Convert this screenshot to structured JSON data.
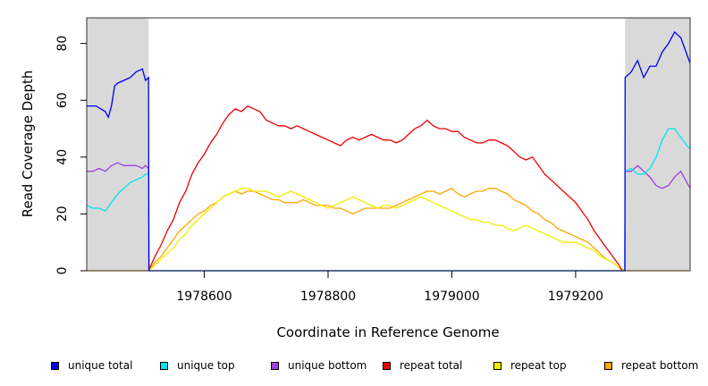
{
  "chart_data": {
    "type": "line",
    "title": "",
    "xlabel": "Coordinate in Reference Genome",
    "ylabel": "Read Coverage Depth",
    "xlim": [
      1978410,
      1979385
    ],
    "ylim": [
      0,
      89
    ],
    "xticks": [
      1978600,
      1978800,
      1979000,
      1979200
    ],
    "xtick_labels": [
      "1978600",
      "1978800",
      "1979000",
      "1979200"
    ],
    "yticks": [
      0,
      20,
      40,
      60,
      80
    ],
    "ytick_labels": [
      "0",
      "20",
      "40",
      "60",
      "80"
    ],
    "shaded_regions": [
      [
        1978410,
        1978510
      ],
      [
        1979280,
        1979385
      ]
    ],
    "shade_color": "#d9d9d9",
    "grid": false,
    "legend_position": "bottom",
    "series": [
      {
        "name": "unique total",
        "color": "#0000ee",
        "x": [
          1978410,
          1978425,
          1978440,
          1978445,
          1978450,
          1978455,
          1978460,
          1978470,
          1978480,
          1978490,
          1978500,
          1978505,
          1978510,
          1978510.5,
          1979279.5,
          1979280,
          1979290,
          1979300,
          1979310,
          1979320,
          1979330,
          1979340,
          1979350,
          1979360,
          1979370,
          1979385
        ],
        "values": [
          58,
          58,
          56,
          54,
          58,
          65,
          66,
          67,
          68,
          70,
          71,
          67,
          68,
          0,
          0,
          68,
          70,
          74,
          68,
          72,
          72,
          77,
          80,
          84,
          82,
          73
        ]
      },
      {
        "name": "unique top",
        "color": "#00e5ee",
        "x": [
          1978410,
          1978420,
          1978430,
          1978440,
          1978450,
          1978460,
          1978470,
          1978480,
          1978490,
          1978500,
          1978505,
          1978510,
          1978510.5,
          1979279.5,
          1979280,
          1979290,
          1979300,
          1979310,
          1979320,
          1979330,
          1979340,
          1979350,
          1979360,
          1979370,
          1979380,
          1979385
        ],
        "values": [
          23,
          22,
          22,
          21,
          24,
          27,
          29,
          31,
          32,
          33,
          34,
          34,
          0,
          0,
          35,
          36,
          34,
          34,
          36,
          40,
          46,
          50,
          50,
          47,
          44,
          43
        ]
      },
      {
        "name": "unique bottom",
        "color": "#a040e0",
        "x": [
          1978410,
          1978420,
          1978430,
          1978440,
          1978450,
          1978460,
          1978470,
          1978480,
          1978490,
          1978500,
          1978505,
          1978510,
          1978510.5,
          1979279.5,
          1979280,
          1979290,
          1979300,
          1979310,
          1979320,
          1979330,
          1979340,
          1979350,
          1979360,
          1979370,
          1979380,
          1979385
        ],
        "values": [
          35,
          35,
          36,
          35,
          37,
          38,
          37,
          37,
          37,
          36,
          37,
          36,
          0,
          0,
          35,
          35,
          37,
          35,
          33,
          30,
          29,
          30,
          33,
          35,
          31,
          29
        ]
      },
      {
        "name": "repeat total",
        "color": "#ee0000",
        "x": [
          1978510,
          1978520,
          1978530,
          1978540,
          1978550,
          1978560,
          1978570,
          1978580,
          1978590,
          1978600,
          1978610,
          1978620,
          1978630,
          1978640,
          1978650,
          1978660,
          1978670,
          1978680,
          1978690,
          1978700,
          1978710,
          1978720,
          1978730,
          1978740,
          1978750,
          1978760,
          1978770,
          1978780,
          1978790,
          1978800,
          1978810,
          1978820,
          1978830,
          1978840,
          1978850,
          1978860,
          1978870,
          1978880,
          1978890,
          1978900,
          1978910,
          1978920,
          1978930,
          1978940,
          1978950,
          1978960,
          1978970,
          1978980,
          1978990,
          1979000,
          1979010,
          1979020,
          1979030,
          1979040,
          1979050,
          1979060,
          1979070,
          1979080,
          1979090,
          1979100,
          1979110,
          1979120,
          1979130,
          1979140,
          1979150,
          1979160,
          1979170,
          1979180,
          1979190,
          1979200,
          1979210,
          1979220,
          1979230,
          1979240,
          1979250,
          1979260,
          1979270,
          1979275,
          1979280
        ],
        "values": [
          0,
          5,
          9,
          14,
          18,
          24,
          28,
          34,
          38,
          41,
          45,
          48,
          52,
          55,
          57,
          56,
          58,
          57,
          56,
          53,
          52,
          51,
          51,
          50,
          51,
          50,
          49,
          48,
          47,
          46,
          45,
          44,
          46,
          47,
          46,
          47,
          48,
          47,
          46,
          46,
          45,
          46,
          48,
          50,
          51,
          53,
          51,
          50,
          50,
          49,
          49,
          47,
          46,
          45,
          45,
          46,
          46,
          45,
          44,
          42,
          40,
          39,
          40,
          37,
          34,
          32,
          30,
          28,
          26,
          24,
          21,
          18,
          14,
          11,
          8,
          5,
          2,
          0,
          0
        ]
      },
      {
        "name": "repeat top",
        "color": "#eeee00",
        "x": [
          1978510,
          1978520,
          1978530,
          1978540,
          1978550,
          1978560,
          1978570,
          1978580,
          1978590,
          1978600,
          1978610,
          1978620,
          1978630,
          1978640,
          1978650,
          1978660,
          1978670,
          1978680,
          1978690,
          1978700,
          1978710,
          1978720,
          1978730,
          1978740,
          1978750,
          1978760,
          1978770,
          1978780,
          1978790,
          1978800,
          1978810,
          1978820,
          1978830,
          1978840,
          1978850,
          1978860,
          1978870,
          1978880,
          1978890,
          1978900,
          1978910,
          1978920,
          1978930,
          1978940,
          1978950,
          1978960,
          1978970,
          1978980,
          1978990,
          1979000,
          1979010,
          1979020,
          1979030,
          1979040,
          1979050,
          1979060,
          1979070,
          1979080,
          1979090,
          1979100,
          1979110,
          1979120,
          1979130,
          1979140,
          1979150,
          1979160,
          1979170,
          1979180,
          1979190,
          1979200,
          1979210,
          1979220,
          1979230,
          1979240,
          1979250,
          1979260,
          1979270,
          1979275,
          1979280
        ],
        "values": [
          0,
          2,
          4,
          6,
          8,
          11,
          13,
          16,
          18,
          20,
          22,
          24,
          26,
          27,
          28,
          29,
          29,
          28,
          28,
          28,
          27,
          26,
          27,
          28,
          27,
          26,
          25,
          24,
          23,
          22,
          23,
          24,
          25,
          26,
          25,
          24,
          23,
          22,
          23,
          23,
          22,
          23,
          24,
          25,
          26,
          25,
          24,
          23,
          22,
          21,
          20,
          19,
          18,
          18,
          17,
          17,
          16,
          16,
          15,
          14,
          15,
          16,
          15,
          14,
          13,
          12,
          11,
          10,
          10,
          10,
          9,
          8,
          7,
          5,
          4,
          3,
          1,
          0,
          0
        ]
      },
      {
        "name": "repeat bottom",
        "color": "#ffa500",
        "x": [
          1978410,
          1978510,
          1978520,
          1978530,
          1978540,
          1978550,
          1978560,
          1978570,
          1978580,
          1978590,
          1978600,
          1978610,
          1978620,
          1978630,
          1978640,
          1978650,
          1978660,
          1978670,
          1978680,
          1978690,
          1978700,
          1978710,
          1978720,
          1978730,
          1978740,
          1978750,
          1978760,
          1978770,
          1978780,
          1978790,
          1978800,
          1978810,
          1978820,
          1978830,
          1978840,
          1978850,
          1978860,
          1978870,
          1978880,
          1978890,
          1978900,
          1978910,
          1978920,
          1978930,
          1978940,
          1978950,
          1978960,
          1978970,
          1978980,
          1978990,
          1979000,
          1979010,
          1979020,
          1979030,
          1979040,
          1979050,
          1979060,
          1979070,
          1979080,
          1979090,
          1979100,
          1979110,
          1979120,
          1979130,
          1979140,
          1979150,
          1979160,
          1979170,
          1979180,
          1979190,
          1979200,
          1979210,
          1979220,
          1979230,
          1979240,
          1979250,
          1979260,
          1979270,
          1979280,
          1979385
        ],
        "values": [
          0,
          0,
          3,
          5,
          8,
          11,
          14,
          16,
          18,
          20,
          21,
          23,
          24,
          26,
          27,
          28,
          27,
          28,
          28,
          27,
          26,
          25,
          25,
          24,
          24,
          24,
          25,
          24,
          23,
          23,
          23,
          22,
          22,
          21,
          20,
          21,
          22,
          22,
          22,
          22,
          22,
          23,
          24,
          25,
          26,
          27,
          28,
          28,
          27,
          28,
          29,
          27,
          26,
          27,
          28,
          28,
          29,
          29,
          28,
          27,
          25,
          24,
          23,
          21,
          20,
          18,
          17,
          15,
          14,
          13,
          12,
          11,
          10,
          8,
          6,
          4,
          3,
          1,
          0,
          0
        ]
      }
    ]
  }
}
